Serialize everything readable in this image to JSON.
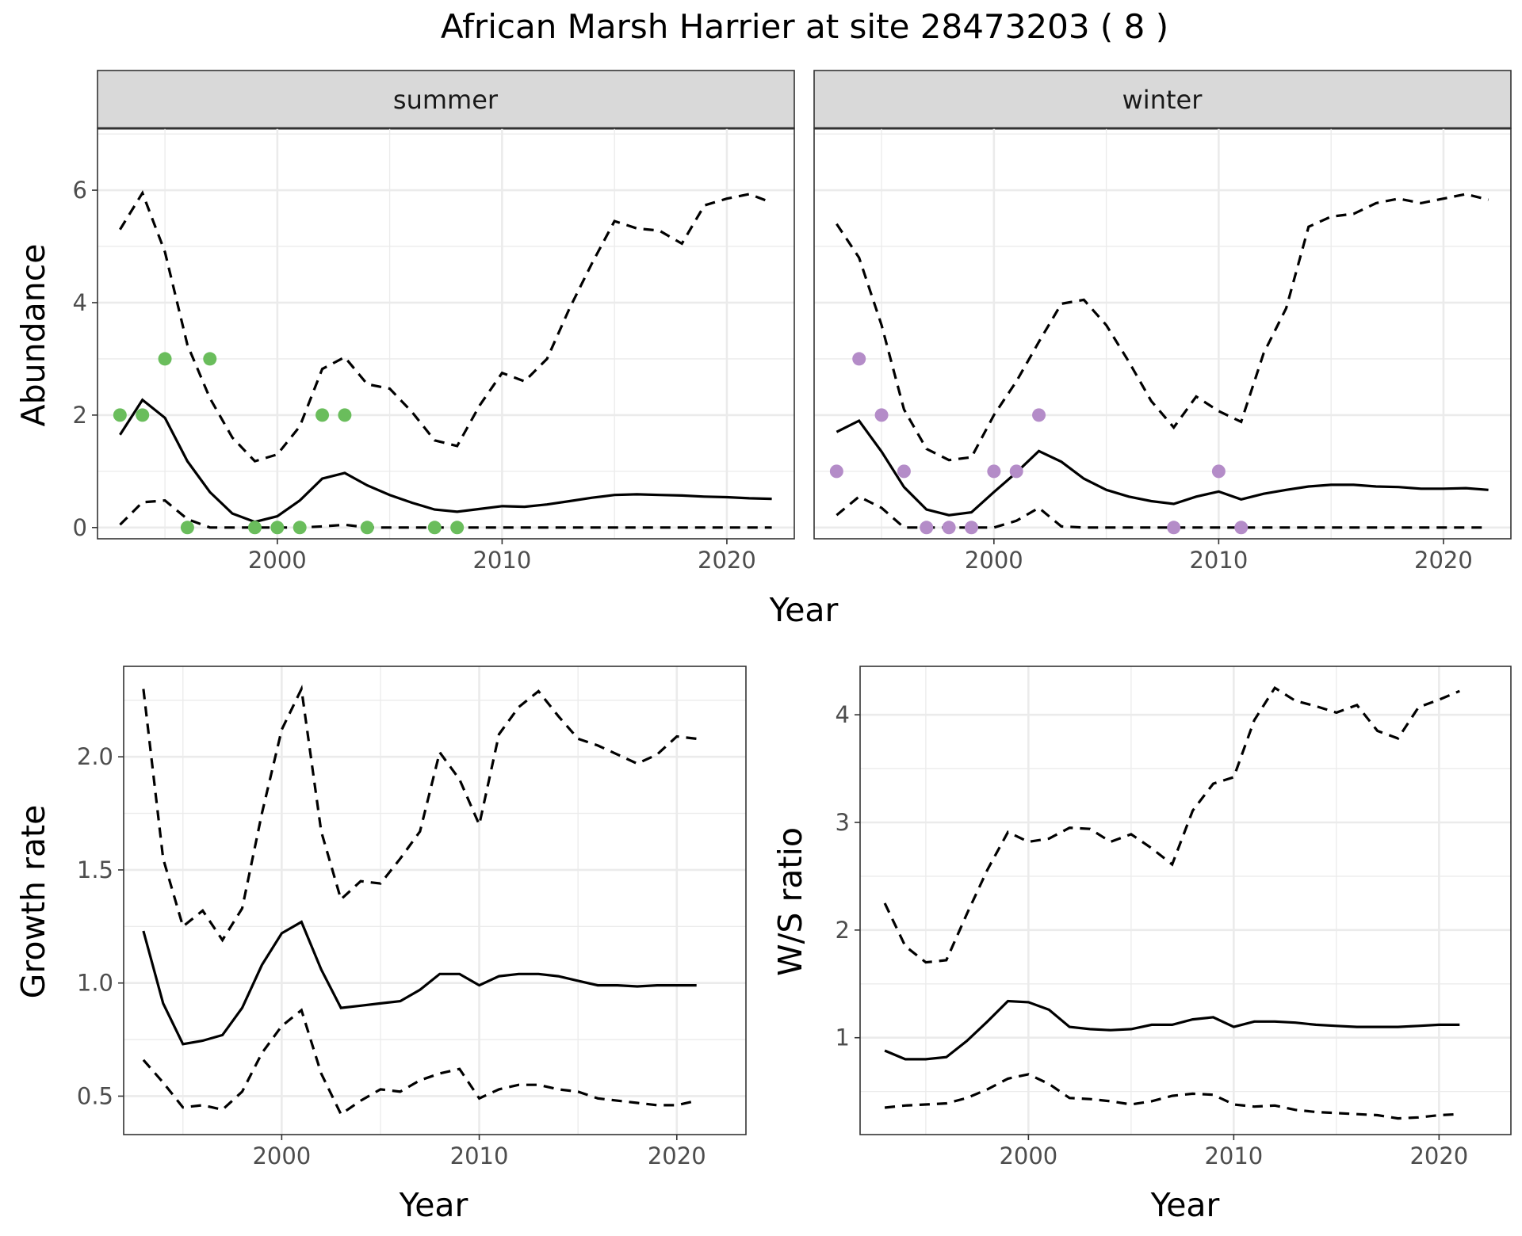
{
  "title": "African Marsh Harrier at site 28473203 ( 8 )",
  "colors": {
    "summer_points": "#6abd5c",
    "winter_points": "#b48cc8",
    "lines": "#000000",
    "strip_bg": "#d9d9d9"
  },
  "chart_data": [
    {
      "id": "abundance-summer",
      "type": "line",
      "facet": "summer",
      "xlabel": "Year",
      "ylabel": "Abundance",
      "xlim": [
        1992,
        2023
      ],
      "ylim": [
        -0.2,
        7.1
      ],
      "x_ticks": [
        2000,
        2010,
        2020
      ],
      "y_ticks": [
        0,
        2,
        4,
        6
      ],
      "grid": true,
      "x": [
        1993,
        1994,
        1995,
        1996,
        1997,
        1998,
        1999,
        2000,
        2001,
        2002,
        2003,
        2004,
        2005,
        2006,
        2007,
        2008,
        2009,
        2010,
        2011,
        2012,
        2013,
        2014,
        2015,
        2016,
        2017,
        2018,
        2019,
        2020,
        2021,
        2022
      ],
      "series": [
        {
          "role": "mean",
          "style": "solid",
          "values": [
            1.65,
            2.27,
            1.95,
            1.18,
            0.63,
            0.25,
            0.1,
            0.2,
            0.48,
            0.87,
            0.97,
            0.75,
            0.58,
            0.44,
            0.32,
            0.28,
            0.33,
            0.38,
            0.37,
            0.41,
            0.47,
            0.53,
            0.58,
            0.59,
            0.58,
            0.57,
            0.55,
            0.54,
            0.52,
            0.51
          ]
        },
        {
          "role": "upper",
          "style": "dashed",
          "values": [
            5.3,
            5.95,
            4.9,
            3.25,
            2.3,
            1.6,
            1.18,
            1.3,
            1.8,
            2.82,
            3.03,
            2.55,
            2.47,
            2.05,
            1.55,
            1.45,
            2.17,
            2.75,
            2.6,
            3.0,
            3.9,
            4.7,
            5.45,
            5.32,
            5.28,
            5.05,
            5.73,
            5.85,
            5.93,
            5.78
          ]
        },
        {
          "role": "lower",
          "style": "dashed",
          "values": [
            0.05,
            0.45,
            0.48,
            0.15,
            0,
            0,
            0,
            0,
            0,
            0.02,
            0.05,
            0,
            0,
            0,
            0,
            0,
            0,
            0,
            0,
            0,
            0,
            0,
            0,
            0,
            0,
            0,
            0,
            0,
            0,
            0
          ]
        }
      ],
      "points": [
        {
          "x": 1993,
          "y": 2
        },
        {
          "x": 1994,
          "y": 2
        },
        {
          "x": 1995,
          "y": 3
        },
        {
          "x": 1996,
          "y": 0
        },
        {
          "x": 1997,
          "y": 3
        },
        {
          "x": 1999,
          "y": 0
        },
        {
          "x": 2000,
          "y": 0
        },
        {
          "x": 2001,
          "y": 0
        },
        {
          "x": 2002,
          "y": 2
        },
        {
          "x": 2003,
          "y": 2
        },
        {
          "x": 2004,
          "y": 0
        },
        {
          "x": 2007,
          "y": 0
        },
        {
          "x": 2008,
          "y": 0
        }
      ]
    },
    {
      "id": "abundance-winter",
      "type": "line",
      "facet": "winter",
      "xlabel": "Year",
      "ylabel": "Abundance",
      "xlim": [
        1992,
        2023
      ],
      "ylim": [
        -0.2,
        7.1
      ],
      "x_ticks": [
        2000,
        2010,
        2020
      ],
      "y_ticks": [
        0,
        2,
        4,
        6
      ],
      "grid": true,
      "x": [
        1993,
        1994,
        1995,
        1996,
        1997,
        1998,
        1999,
        2000,
        2001,
        2002,
        2003,
        2004,
        2005,
        2006,
        2007,
        2008,
        2009,
        2010,
        2011,
        2012,
        2013,
        2014,
        2015,
        2016,
        2017,
        2018,
        2019,
        2020,
        2021,
        2022
      ],
      "series": [
        {
          "role": "mean",
          "style": "solid",
          "values": [
            1.7,
            1.9,
            1.35,
            0.72,
            0.32,
            0.22,
            0.27,
            0.63,
            0.98,
            1.36,
            1.17,
            0.87,
            0.67,
            0.55,
            0.47,
            0.42,
            0.55,
            0.64,
            0.5,
            0.6,
            0.67,
            0.73,
            0.76,
            0.76,
            0.73,
            0.72,
            0.69,
            0.69,
            0.7,
            0.67
          ]
        },
        {
          "role": "upper",
          "style": "dashed",
          "values": [
            5.4,
            4.8,
            3.6,
            2.1,
            1.4,
            1.2,
            1.25,
            2.0,
            2.6,
            3.3,
            3.98,
            4.05,
            3.6,
            2.95,
            2.25,
            1.78,
            2.33,
            2.07,
            1.88,
            3.1,
            3.9,
            5.35,
            5.53,
            5.58,
            5.77,
            5.85,
            5.77,
            5.85,
            5.93,
            5.83
          ]
        },
        {
          "role": "lower",
          "style": "dashed",
          "values": [
            0.22,
            0.55,
            0.35,
            0,
            0,
            0,
            0,
            0,
            0.12,
            0.35,
            0.02,
            0,
            0,
            0,
            0,
            0,
            0,
            0,
            0,
            0,
            0,
            0,
            0,
            0,
            0,
            0,
            0,
            0,
            0,
            0
          ]
        }
      ],
      "points": [
        {
          "x": 1993,
          "y": 1
        },
        {
          "x": 1994,
          "y": 3
        },
        {
          "x": 1995,
          "y": 2
        },
        {
          "x": 1996,
          "y": 1
        },
        {
          "x": 1997,
          "y": 0
        },
        {
          "x": 1998,
          "y": 0
        },
        {
          "x": 1999,
          "y": 0
        },
        {
          "x": 2000,
          "y": 1
        },
        {
          "x": 2001,
          "y": 1
        },
        {
          "x": 2002,
          "y": 2
        },
        {
          "x": 2008,
          "y": 0
        },
        {
          "x": 2010,
          "y": 1
        },
        {
          "x": 2011,
          "y": 0
        }
      ]
    },
    {
      "id": "growth-rate",
      "type": "line",
      "xlabel": "Year",
      "ylabel": "Growth rate",
      "xlim": [
        1992,
        2023.5
      ],
      "ylim": [
        0.33,
        2.4
      ],
      "x_ticks": [
        2000,
        2010,
        2020
      ],
      "y_ticks": [
        0.5,
        1.0,
        1.5,
        2.0
      ],
      "y_tick_labels": [
        "0.5",
        "1.0",
        "1.5",
        "2.0"
      ],
      "grid": true,
      "x": [
        1993,
        1994,
        1995,
        1996,
        1997,
        1998,
        1999,
        2000,
        2001,
        2002,
        2003,
        2004,
        2005,
        2006,
        2007,
        2008,
        2009,
        2010,
        2011,
        2012,
        2013,
        2014,
        2015,
        2016,
        2017,
        2018,
        2019,
        2020,
        2021
      ],
      "series": [
        {
          "role": "mean",
          "style": "solid",
          "values": [
            1.23,
            0.91,
            0.73,
            0.745,
            0.77,
            0.89,
            1.08,
            1.22,
            1.27,
            1.06,
            0.89,
            0.9,
            0.91,
            0.92,
            0.97,
            1.04,
            1.04,
            0.99,
            1.03,
            1.04,
            1.04,
            1.03,
            1.01,
            0.99,
            0.99,
            0.985,
            0.99,
            0.99,
            0.99
          ]
        },
        {
          "role": "upper",
          "style": "dashed",
          "values": [
            2.3,
            1.55,
            1.25,
            1.32,
            1.19,
            1.33,
            1.75,
            2.12,
            2.3,
            1.67,
            1.37,
            1.45,
            1.44,
            1.55,
            1.67,
            2.02,
            1.9,
            1.7,
            2.1,
            2.22,
            2.29,
            2.18,
            2.08,
            2.05,
            2.01,
            1.97,
            2.01,
            2.09,
            2.08
          ]
        },
        {
          "role": "lower",
          "style": "dashed",
          "values": [
            0.66,
            0.56,
            0.45,
            0.46,
            0.44,
            0.52,
            0.69,
            0.81,
            0.88,
            0.6,
            0.42,
            0.48,
            0.53,
            0.52,
            0.57,
            0.6,
            0.62,
            0.49,
            0.53,
            0.55,
            0.55,
            0.53,
            0.52,
            0.49,
            0.48,
            0.47,
            0.46,
            0.46,
            0.48
          ]
        }
      ]
    },
    {
      "id": "ws-ratio",
      "type": "line",
      "xlabel": "Year",
      "ylabel": "W/S ratio",
      "xlim": [
        1991.8,
        2023.5
      ],
      "ylim": [
        0.1,
        4.45
      ],
      "x_ticks": [
        2000,
        2010,
        2020
      ],
      "y_ticks": [
        1,
        2,
        3,
        4
      ],
      "grid": true,
      "x": [
        1993,
        1994,
        1995,
        1996,
        1997,
        1998,
        1999,
        2000,
        2001,
        2002,
        2003,
        2004,
        2005,
        2006,
        2007,
        2008,
        2009,
        2010,
        2011,
        2012,
        2013,
        2014,
        2015,
        2016,
        2017,
        2018,
        2019,
        2020,
        2021
      ],
      "series": [
        {
          "role": "mean",
          "style": "solid",
          "values": [
            0.88,
            0.8,
            0.8,
            0.82,
            0.97,
            1.15,
            1.34,
            1.33,
            1.26,
            1.1,
            1.08,
            1.07,
            1.08,
            1.12,
            1.12,
            1.17,
            1.19,
            1.1,
            1.15,
            1.15,
            1.14,
            1.12,
            1.11,
            1.1,
            1.1,
            1.1,
            1.11,
            1.12,
            1.12
          ]
        },
        {
          "role": "upper",
          "style": "dashed",
          "values": [
            2.25,
            1.85,
            1.7,
            1.72,
            2.15,
            2.56,
            2.91,
            2.82,
            2.85,
            2.95,
            2.94,
            2.82,
            2.89,
            2.76,
            2.61,
            3.11,
            3.36,
            3.42,
            3.95,
            4.25,
            4.13,
            4.08,
            4.02,
            4.09,
            3.85,
            3.78,
            4.07,
            4.14,
            4.22
          ]
        },
        {
          "role": "lower",
          "style": "dashed",
          "values": [
            0.35,
            0.37,
            0.38,
            0.39,
            0.44,
            0.52,
            0.62,
            0.66,
            0.57,
            0.44,
            0.43,
            0.41,
            0.38,
            0.41,
            0.46,
            0.48,
            0.47,
            0.38,
            0.36,
            0.37,
            0.33,
            0.31,
            0.3,
            0.29,
            0.28,
            0.25,
            0.26,
            0.28,
            0.29
          ]
        }
      ]
    }
  ]
}
